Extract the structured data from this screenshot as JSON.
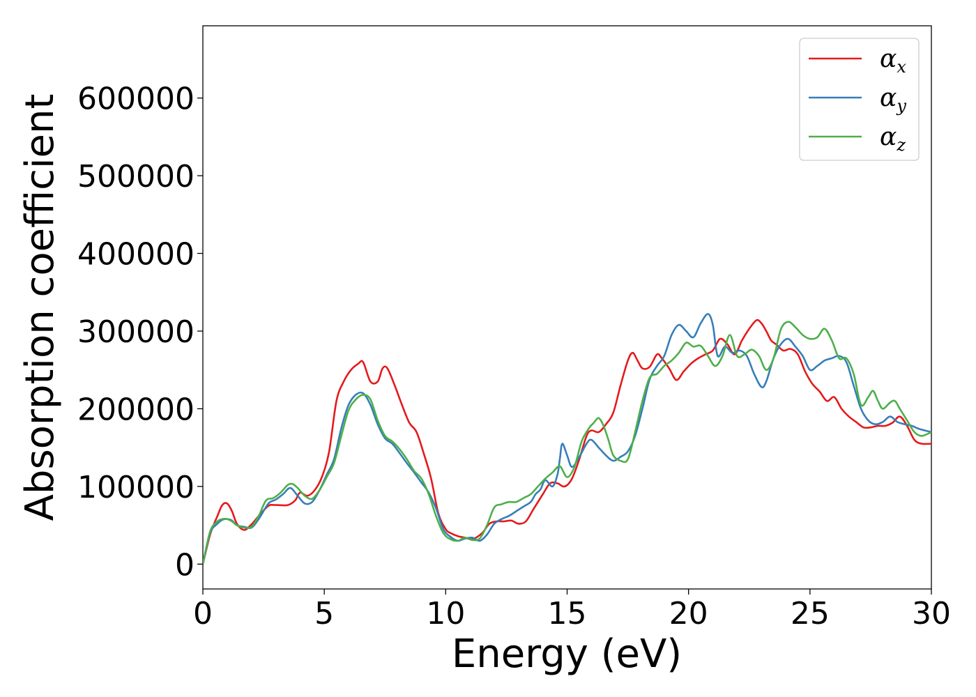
{
  "chart_data": {
    "type": "line",
    "xlabel": "Energy (eV)",
    "ylabel": "Absorption coefficient",
    "xlim": [
      0,
      30
    ],
    "ylim": [
      -32000,
      693000
    ],
    "xticks": [
      0,
      5,
      10,
      15,
      20,
      25,
      30
    ],
    "yticks": [
      0,
      100000,
      200000,
      300000,
      400000,
      500000,
      600000
    ],
    "grid": false,
    "legend_position": "top-right",
    "series": [
      {
        "name": "α_x",
        "base": "α",
        "sub": "x",
        "color": "#e41a1c",
        "x": [
          0,
          0.3,
          0.6,
          0.8,
          1.0,
          1.2,
          1.4,
          1.7,
          2.0,
          2.3,
          2.7,
          3.0,
          3.5,
          3.8,
          4.0,
          4.3,
          4.6,
          4.9,
          5.2,
          5.5,
          5.8,
          6.1,
          6.4,
          6.6,
          6.9,
          7.2,
          7.4,
          7.6,
          7.9,
          8.2,
          8.5,
          8.8,
          9.1,
          9.4,
          9.7,
          10.0,
          10.2,
          10.5,
          10.8,
          11.1,
          11.5,
          11.8,
          12.1,
          12.4,
          12.7,
          13.0,
          13.3,
          13.6,
          14.0,
          14.3,
          14.6,
          14.9,
          15.2,
          15.5,
          15.8,
          16.0,
          16.3,
          16.6,
          16.9,
          17.2,
          17.5,
          17.7,
          17.9,
          18.1,
          18.4,
          18.7,
          18.9,
          19.2,
          19.5,
          19.8,
          20.1,
          20.4,
          20.7,
          21.0,
          21.3,
          21.6,
          21.9,
          22.2,
          22.5,
          22.8,
          23.0,
          23.2,
          23.4,
          23.6,
          23.9,
          24.2,
          24.5,
          24.8,
          25.1,
          25.4,
          25.7,
          26.0,
          26.3,
          26.6,
          26.9,
          27.2,
          27.5,
          27.8,
          28.1,
          28.4,
          28.7,
          29.0,
          29.3,
          29.6,
          30.0
        ],
        "y": [
          0,
          38000,
          62000,
          76000,
          78000,
          68000,
          52000,
          44000,
          51000,
          62000,
          75000,
          76000,
          76000,
          82000,
          92000,
          88000,
          95000,
          112000,
          145000,
          210000,
          235000,
          250000,
          258000,
          260000,
          235000,
          235000,
          252000,
          252000,
          230000,
          205000,
          182000,
          170000,
          142000,
          110000,
          65000,
          45000,
          40000,
          36000,
          34000,
          32000,
          40000,
          52000,
          55000,
          55000,
          56000,
          52000,
          55000,
          70000,
          90000,
          104000,
          104000,
          100000,
          110000,
          135000,
          165000,
          172000,
          170000,
          180000,
          195000,
          230000,
          262000,
          272000,
          262000,
          252000,
          254000,
          270000,
          265000,
          252000,
          237000,
          248000,
          258000,
          265000,
          270000,
          275000,
          290000,
          283000,
          270000,
          288000,
          303000,
          314000,
          310000,
          300000,
          288000,
          283000,
          275000,
          277000,
          270000,
          248000,
          232000,
          222000,
          210000,
          215000,
          200000,
          190000,
          183000,
          176000,
          176000,
          178000,
          178000,
          182000,
          190000,
          178000,
          160000,
          155000,
          155000
        ]
      },
      {
        "name": "α_y",
        "base": "α",
        "sub": "y",
        "color": "#377eb8",
        "x": [
          0,
          0.3,
          0.6,
          0.8,
          1.0,
          1.2,
          1.4,
          1.7,
          2.0,
          2.3,
          2.7,
          3.0,
          3.3,
          3.6,
          3.9,
          4.2,
          4.5,
          4.8,
          5.1,
          5.4,
          5.7,
          6.0,
          6.3,
          6.6,
          6.9,
          7.2,
          7.5,
          7.8,
          8.1,
          8.4,
          8.7,
          9.0,
          9.3,
          9.6,
          9.9,
          10.2,
          10.5,
          10.8,
          11.1,
          11.4,
          11.7,
          12.0,
          12.3,
          12.6,
          12.9,
          13.2,
          13.5,
          13.7,
          13.9,
          14.1,
          14.4,
          14.6,
          14.7,
          14.8,
          15.0,
          15.2,
          15.5,
          15.8,
          16.0,
          16.3,
          16.6,
          16.9,
          17.2,
          17.5,
          17.8,
          18.1,
          18.4,
          18.7,
          19.0,
          19.3,
          19.6,
          19.9,
          20.2,
          20.5,
          20.8,
          21.0,
          21.2,
          21.5,
          21.8,
          22.1,
          22.4,
          22.7,
          23.0,
          23.2,
          23.5,
          23.8,
          24.1,
          24.4,
          24.7,
          25.0,
          25.3,
          25.6,
          25.9,
          26.2,
          26.5,
          26.8,
          27.1,
          27.4,
          27.7,
          28.0,
          28.3,
          28.6,
          28.9,
          29.2,
          29.5,
          30.0
        ],
        "y": [
          0,
          40000,
          52000,
          57000,
          58000,
          56000,
          50000,
          48000,
          47000,
          58000,
          78000,
          83000,
          90000,
          98000,
          88000,
          78000,
          80000,
          95000,
          115000,
          135000,
          175000,
          205000,
          218000,
          220000,
          205000,
          180000,
          162000,
          155000,
          143000,
          130000,
          118000,
          105000,
          92000,
          72000,
          45000,
          35000,
          30000,
          33000,
          34000,
          30000,
          38000,
          52000,
          58000,
          62000,
          68000,
          74000,
          80000,
          90000,
          96000,
          108000,
          100000,
          115000,
          135000,
          155000,
          140000,
          125000,
          138000,
          155000,
          160000,
          150000,
          140000,
          133000,
          138000,
          145000,
          165000,
          200000,
          238000,
          255000,
          268000,
          295000,
          308000,
          300000,
          292000,
          310000,
          322000,
          308000,
          268000,
          280000,
          272000,
          275000,
          268000,
          245000,
          228000,
          235000,
          265000,
          283000,
          290000,
          280000,
          268000,
          250000,
          255000,
          262000,
          265000,
          268000,
          260000,
          230000,
          200000,
          185000,
          180000,
          183000,
          190000,
          183000,
          180000,
          178000,
          174000,
          170000
        ]
      },
      {
        "name": "α_z",
        "base": "α",
        "sub": "z",
        "color": "#4daf4a",
        "x": [
          0,
          0.3,
          0.6,
          0.8,
          1.0,
          1.2,
          1.4,
          1.7,
          2.0,
          2.3,
          2.6,
          2.9,
          3.2,
          3.5,
          3.7,
          3.9,
          4.2,
          4.5,
          4.8,
          5.1,
          5.4,
          5.7,
          6.0,
          6.3,
          6.6,
          6.9,
          7.2,
          7.5,
          7.8,
          8.1,
          8.4,
          8.7,
          9.0,
          9.3,
          9.6,
          9.9,
          10.2,
          10.5,
          10.8,
          11.1,
          11.4,
          11.7,
          12.0,
          12.3,
          12.6,
          12.9,
          13.2,
          13.5,
          13.8,
          14.1,
          14.4,
          14.7,
          15.0,
          15.3,
          15.6,
          15.9,
          16.1,
          16.3,
          16.5,
          16.7,
          16.9,
          17.2,
          17.5,
          17.8,
          18.1,
          18.4,
          18.7,
          19.0,
          19.3,
          19.6,
          19.9,
          20.2,
          20.5,
          20.8,
          21.1,
          21.4,
          21.7,
          22.0,
          22.3,
          22.6,
          22.9,
          23.2,
          23.5,
          23.8,
          24.1,
          24.4,
          24.7,
          25.0,
          25.3,
          25.6,
          25.9,
          26.2,
          26.5,
          26.8,
          27.1,
          27.4,
          27.6,
          27.8,
          28.0,
          28.3,
          28.5,
          28.7,
          29.0,
          29.3,
          29.6,
          30.0
        ],
        "y": [
          0,
          42000,
          55000,
          58000,
          58000,
          55000,
          50000,
          47000,
          48000,
          62000,
          82000,
          85000,
          92000,
          102000,
          103000,
          98000,
          88000,
          84000,
          95000,
          112000,
          130000,
          165000,
          198000,
          212000,
          218000,
          212000,
          185000,
          165000,
          158000,
          148000,
          135000,
          120000,
          110000,
          90000,
          62000,
          40000,
          32000,
          30000,
          34000,
          31000,
          33000,
          50000,
          73000,
          77000,
          80000,
          80000,
          85000,
          90000,
          100000,
          110000,
          118000,
          126000,
          112000,
          125000,
          158000,
          175000,
          182000,
          188000,
          178000,
          160000,
          140000,
          133000,
          135000,
          170000,
          210000,
          240000,
          245000,
          255000,
          262000,
          272000,
          285000,
          280000,
          281000,
          268000,
          255000,
          268000,
          295000,
          268000,
          270000,
          276000,
          268000,
          250000,
          265000,
          302000,
          312000,
          305000,
          295000,
          290000,
          292000,
          303000,
          288000,
          265000,
          265000,
          245000,
          205000,
          215000,
          223000,
          210000,
          200000,
          208000,
          210000,
          200000,
          185000,
          170000,
          165000,
          170000
        ]
      }
    ]
  }
}
